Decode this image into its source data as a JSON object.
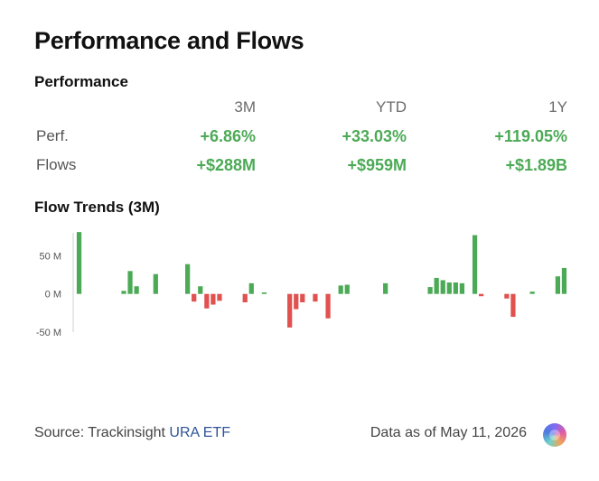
{
  "header": {
    "title": "Performance and Flows"
  },
  "performance": {
    "heading": "Performance",
    "columns": [
      "3M",
      "YTD",
      "1Y"
    ],
    "rows": [
      {
        "label": "Perf.",
        "values": [
          "+6.86%",
          "+33.03%",
          "+119.05%"
        ]
      },
      {
        "label": "Flows",
        "values": [
          "+$288M",
          "+$959M",
          "+$1.89B"
        ]
      }
    ]
  },
  "flow_trends": {
    "heading": "Flow Trends (3M)"
  },
  "chart_data": {
    "type": "bar",
    "title": "Flow Trends (3M)",
    "ylabel": "",
    "xlabel": "",
    "unit": "M",
    "ylim": [
      -50,
      80
    ],
    "y_ticks": [
      50,
      0,
      -50
    ],
    "y_tick_labels": [
      "50 M",
      "0 M",
      "-50 M"
    ],
    "values": [
      81,
      0,
      0,
      0,
      0,
      0,
      0,
      4,
      30,
      10,
      0,
      0,
      26,
      0,
      0,
      0,
      0,
      39,
      -10,
      10,
      -19,
      -14,
      -9,
      0,
      0,
      0,
      -11,
      14,
      0,
      2,
      0,
      0,
      0,
      -44,
      -20,
      -11,
      0,
      -10,
      0,
      -32,
      0,
      11,
      12,
      0,
      0,
      0,
      0,
      0,
      14,
      0,
      0,
      0,
      0,
      0,
      0,
      9,
      21,
      18,
      15,
      15,
      14,
      0,
      77,
      -3,
      0,
      0,
      0,
      -6,
      -30,
      0,
      0,
      3,
      0,
      0,
      0,
      23,
      34
    ],
    "colors": {
      "positive": "#4caa56",
      "negative": "#e0514f"
    },
    "grid": false,
    "legend": "none"
  },
  "footer": {
    "source_prefix": "Source: Trackinsight",
    "source_link": "URA ETF",
    "date_text": "Data as of May 11, 2026"
  }
}
